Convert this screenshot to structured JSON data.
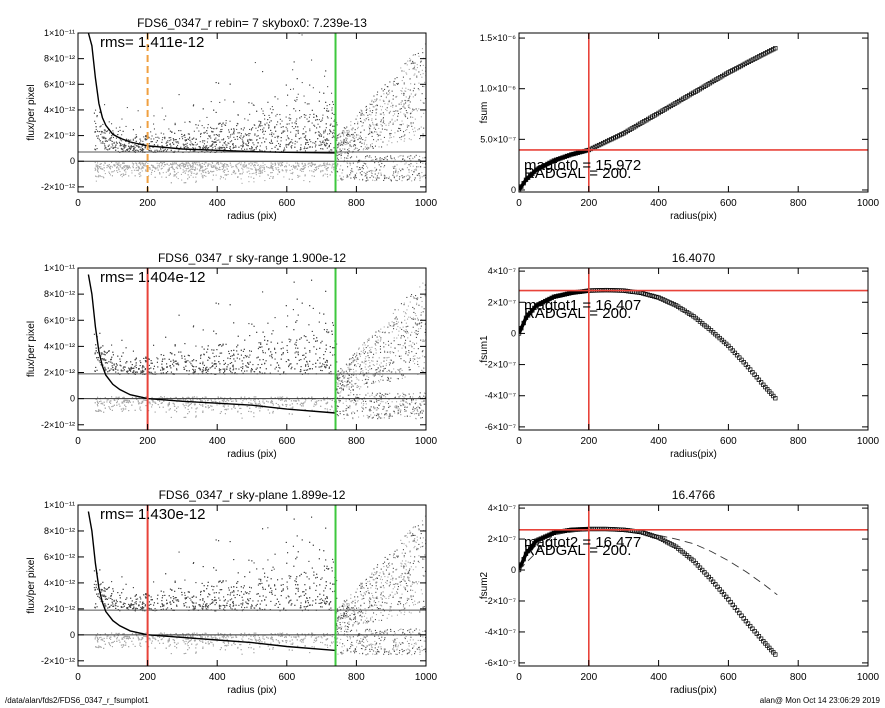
{
  "footer": {
    "left": "/data/alan/fds2/FDS6_0347_r_fsumplot1",
    "right": "alan@  Mon Oct 14 23:06:29 2019"
  },
  "panels": [
    {
      "title": "FDS6_0347_r rebin= 7    skybox0:  7.239e-13",
      "rms": "rms= 1.411e-12",
      "xlabel": "radius (pix)",
      "ylabel": "flux/per pixel",
      "yticks": [
        "-2×10⁻¹²",
        "0",
        "2×10⁻¹²",
        "4×10⁻¹²",
        "6×10⁻¹²",
        "8×10⁻¹²",
        "1×10⁻¹¹"
      ],
      "xticks": [
        "0",
        "200",
        "400",
        "600",
        "800",
        "1000"
      ]
    },
    {
      "title": "FDS6_0347_r sky-range  1.900e-12",
      "rms": "rms= 1.404e-12",
      "xlabel": "radius (pix)",
      "ylabel": "flux/per pixel",
      "yticks": [
        "-2×10⁻¹²",
        "0",
        "2×10⁻¹²",
        "4×10⁻¹²",
        "6×10⁻¹²",
        "8×10⁻¹²",
        "1×10⁻¹¹"
      ],
      "xticks": [
        "0",
        "200",
        "400",
        "600",
        "800",
        "1000"
      ]
    },
    {
      "title": "FDS6_0347_r sky-plane  1.899e-12",
      "rms": "rms= 1.430e-12",
      "xlabel": "radius (pix)",
      "ylabel": "flux/per pixel",
      "yticks": [
        "-2×10⁻¹²",
        "0",
        "2×10⁻¹²",
        "4×10⁻¹²",
        "6×10⁻¹²",
        "8×10⁻¹²",
        "1×10⁻¹¹"
      ],
      "xticks": [
        "0",
        "200",
        "400",
        "600",
        "800",
        "1000"
      ]
    },
    {
      "title": "",
      "xlabel": "radius(pix)",
      "ylabel": "fsum",
      "yticks": [
        "0",
        "5.0×10⁻⁷",
        "1.0×10⁻⁶",
        "1.5×10⁻⁶"
      ],
      "xticks": [
        "0",
        "200",
        "400",
        "600",
        "800",
        "1000"
      ],
      "ann1": "magtot0 = 15.972",
      "ann2": "RADGAL =    200."
    },
    {
      "title": "16.4070",
      "xlabel": "radius(pix)",
      "ylabel": "fsum1",
      "yticks": [
        "-6×10⁻⁷",
        "-4×10⁻⁷",
        "-2×10⁻⁷",
        "0",
        "2×10⁻⁷",
        "4×10⁻⁷"
      ],
      "xticks": [
        "0",
        "200",
        "400",
        "600",
        "800",
        "1000"
      ],
      "ann1": "magtot1 = 16.407",
      "ann2": "RADGAL =    200."
    },
    {
      "title": "16.4766",
      "xlabel": "radius(pix)",
      "ylabel": "fsum2",
      "yticks": [
        "-6×10⁻⁷",
        "-4×10⁻⁷",
        "-2×10⁻⁷",
        "0",
        "2×10⁻⁷",
        "4×10⁻⁷"
      ],
      "xticks": [
        "0",
        "200",
        "400",
        "600",
        "800",
        "1000"
      ],
      "ann1": "magtot2 = 16.477",
      "ann2": "RADGAL =    200."
    }
  ],
  "colors": {
    "red": "#e8433a",
    "green": "#3ec83e",
    "orange": "#f0a040",
    "scatter_dark": "#4a4a4a",
    "scatter_light": "#a8a8a8"
  },
  "chart_data": [
    {
      "type": "scatter",
      "title": "FDS6_0347_r rebin= 7    skybox0:  7.239e-13",
      "xlabel": "radius (pix)",
      "ylabel": "flux/per pixel",
      "xlim": [
        0,
        1000
      ],
      "ylim": [
        -2.4e-12,
        1e-11
      ],
      "profile": {
        "x": [
          30,
          40,
          50,
          60,
          70,
          80,
          100,
          120,
          150,
          200,
          300,
          400,
          500,
          600,
          740
        ],
        "y": [
          1e-11,
          9e-12,
          6.5e-12,
          4.5e-12,
          3.4e-12,
          2.8e-12,
          2.1e-12,
          1.8e-12,
          1.5e-12,
          1.2e-12,
          9.5e-13,
          8.5e-13,
          7.5e-13,
          7e-13,
          6.5e-13
        ]
      },
      "hlines": [
        7.239e-13,
        0
      ],
      "vlines": [
        {
          "x": 200,
          "color": "orange",
          "style": "dashed"
        },
        {
          "x": 740,
          "color": "green"
        }
      ]
    },
    {
      "type": "scatter",
      "title": "FDS6_0347_r sky-range  1.900e-12",
      "xlabel": "radius (pix)",
      "ylabel": "flux/per pixel",
      "xlim": [
        0,
        1000
      ],
      "ylim": [
        -2.4e-12,
        1e-11
      ],
      "profile": {
        "x": [
          30,
          40,
          50,
          60,
          70,
          80,
          100,
          120,
          150,
          200,
          300,
          400,
          500,
          600,
          740
        ],
        "y": [
          9.5e-12,
          8e-12,
          5.5e-12,
          3.6e-12,
          2.5e-12,
          1.8e-12,
          1.1e-12,
          7e-13,
          3e-13,
          0,
          -2e-13,
          -3.5e-13,
          -5e-13,
          -8e-13,
          -1.1e-12
        ]
      },
      "hlines": [
        1.9e-12,
        0
      ],
      "vlines": [
        {
          "x": 200,
          "color": "red"
        },
        {
          "x": 740,
          "color": "green"
        }
      ]
    },
    {
      "type": "scatter",
      "title": "FDS6_0347_r sky-plane  1.899e-12",
      "xlabel": "radius (pix)",
      "ylabel": "flux/per pixel",
      "xlim": [
        0,
        1000
      ],
      "ylim": [
        -2.4e-12,
        1e-11
      ],
      "profile": {
        "x": [
          30,
          40,
          50,
          60,
          70,
          80,
          100,
          120,
          150,
          200,
          300,
          400,
          500,
          600,
          740
        ],
        "y": [
          9.5e-12,
          8e-12,
          5.5e-12,
          3.6e-12,
          2.5e-12,
          1.8e-12,
          1.1e-12,
          7e-13,
          3e-13,
          0,
          -2e-13,
          -4e-13,
          -6e-13,
          -9e-13,
          -1.2e-12
        ]
      },
      "hlines": [
        1.9e-12,
        0
      ],
      "vlines": [
        {
          "x": 200,
          "color": "red"
        },
        {
          "x": 740,
          "color": "green"
        }
      ]
    },
    {
      "type": "line",
      "xlabel": "radius(pix)",
      "ylabel": "fsum",
      "xlim": [
        0,
        1000
      ],
      "ylim": [
        -2e-08,
        1.55e-06
      ],
      "series": [
        {
          "x": [
            0,
            20,
            50,
            100,
            150,
            200,
            300,
            400,
            500,
            600,
            700,
            740
          ],
          "y": [
            0,
            1e-07,
            2e-07,
            2.9e-07,
            3.5e-07,
            3.95e-07,
            5.6e-07,
            7.6e-07,
            9.6e-07,
            1.16e-06,
            1.34e-06,
            1.41e-06
          ]
        }
      ],
      "hline": 3.95e-07,
      "vline": 200
    },
    {
      "type": "line",
      "title": "16.4070",
      "xlabel": "radius(pix)",
      "ylabel": "fsum1",
      "xlim": [
        0,
        1000
      ],
      "ylim": [
        -6.2e-07,
        4.2e-07
      ],
      "series": [
        {
          "x": [
            0,
            20,
            50,
            100,
            150,
            200,
            250,
            300,
            350,
            400,
            450,
            500,
            550,
            600,
            650,
            700,
            740
          ],
          "y": [
            0,
            1e-07,
            1.8e-07,
            2.35e-07,
            2.6e-07,
            2.75e-07,
            2.78e-07,
            2.75e-07,
            2.6e-07,
            2.3e-07,
            1.8e-07,
            1.1e-07,
            2e-08,
            -8e-08,
            -2e-07,
            -3.3e-07,
            -4.3e-07
          ]
        }
      ],
      "hline": 2.75e-07,
      "vline": 200
    },
    {
      "type": "line",
      "title": "16.4766",
      "xlabel": "radius(pix)",
      "ylabel": "fsum2",
      "xlim": [
        0,
        1000
      ],
      "ylim": [
        -6.2e-07,
        4.2e-07
      ],
      "series": [
        {
          "x": [
            0,
            20,
            50,
            100,
            150,
            200,
            250,
            300,
            350,
            400,
            450,
            500,
            550,
            600,
            650,
            700,
            740
          ],
          "y": [
            0,
            1.05e-07,
            1.9e-07,
            2.4e-07,
            2.6e-07,
            2.65e-07,
            2.65e-07,
            2.6e-07,
            2.45e-07,
            2.1e-07,
            1.5e-07,
            6e-08,
            -6e-08,
            -1.9e-07,
            -3.3e-07,
            -4.6e-07,
            -5.6e-07
          ]
        },
        {
          "x": [
            0,
            100,
            200,
            300,
            400,
            450,
            500,
            550,
            600,
            650,
            700,
            740
          ],
          "y": [
            0,
            2.3e-07,
            2.6e-07,
            2.55e-07,
            2.25e-07,
            2e-07,
            1.7e-07,
            1.2e-07,
            6e-08,
            -1e-08,
            -9e-08,
            -1.6e-07
          ]
        }
      ],
      "hline": 2.6e-07,
      "vline": 200
    }
  ]
}
